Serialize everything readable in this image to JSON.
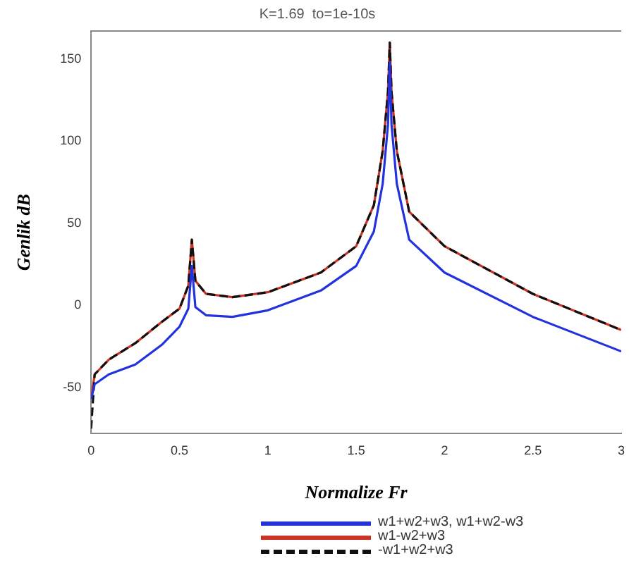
{
  "chart_data": {
    "type": "line",
    "title": "K=1.69  to=1e-10s",
    "xlabel": "Normalize Fr",
    "ylabel": "Genlik dB",
    "xlim": [
      0,
      3
    ],
    "xticks": [
      0,
      0.5,
      1,
      {
        "value": 1.5,
        "label": "1.5"
      },
      2,
      2.5,
      3
    ],
    "ylim": [
      -78,
      167
    ],
    "yticks": [
      -50,
      0,
      50,
      100,
      150
    ],
    "grid": false,
    "legend": "bottom",
    "marker": "none",
    "x": [
      0,
      0.02,
      0.1,
      0.25,
      0.4,
      0.5,
      0.55,
      0.57,
      0.59,
      0.65,
      0.8,
      1.0,
      1.3,
      1.5,
      1.6,
      1.65,
      1.68,
      1.69,
      1.7,
      1.73,
      1.8,
      2.0,
      2.5,
      3.0
    ],
    "series": [
      {
        "name": "w1+w2+w3,  w1+w2-w3",
        "color": "#2233dd",
        "line_style": "solid",
        "values": [
          -57,
          -48,
          -42,
          -36,
          -24,
          -13,
          -2,
          24,
          -1,
          -6,
          -7,
          -3,
          9,
          24,
          45,
          74,
          110,
          148,
          110,
          74,
          40,
          20,
          -7,
          -28
        ]
      },
      {
        "name": "w1-w2+w3",
        "color": "#cc3322",
        "line_style": "solid",
        "values": [
          -57,
          -42,
          -33,
          -23,
          -10,
          -2,
          12,
          40,
          15,
          7,
          5,
          8,
          20,
          36,
          61,
          94,
          130,
          160,
          130,
          94,
          57,
          36,
          7,
          -15
        ]
      },
      {
        "name": "-w1+w2+w3",
        "color": "#111111",
        "line_style": "dashed",
        "values": [
          -75,
          -42,
          -33,
          -23,
          -10,
          -2,
          12,
          40,
          15,
          7,
          5,
          8,
          20,
          36,
          61,
          94,
          130,
          160,
          130,
          94,
          57,
          36,
          7,
          -15
        ]
      }
    ]
  }
}
